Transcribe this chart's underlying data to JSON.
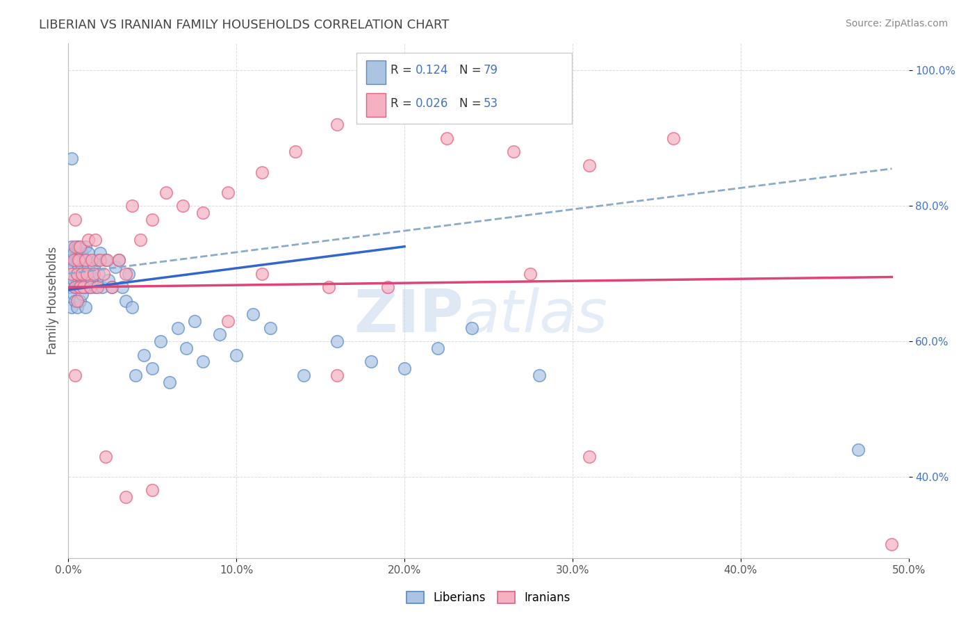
{
  "title": "LIBERIAN VS IRANIAN FAMILY HOUSEHOLDS CORRELATION CHART",
  "source": "Source: ZipAtlas.com",
  "ylabel": "Family Households",
  "xlim": [
    0.0,
    0.5
  ],
  "ylim": [
    0.28,
    1.04
  ],
  "x_ticks": [
    0.0,
    0.1,
    0.2,
    0.3,
    0.4,
    0.5
  ],
  "x_tick_labels": [
    "0.0%",
    "10.0%",
    "20.0%",
    "30.0%",
    "40.0%",
    "50.0%"
  ],
  "y_ticks": [
    0.4,
    0.6,
    0.8,
    1.0
  ],
  "y_tick_labels": [
    "40.0%",
    "60.0%",
    "80.0%",
    "100.0%"
  ],
  "liberian_color": "#aac4e2",
  "iranian_color": "#f5b0c2",
  "liberian_edge_color": "#5588cc",
  "iranian_edge_color": "#e06080",
  "liberian_line_color": "#3366cc",
  "iranian_line_color": "#dd4477",
  "dashed_line_color": "#88aacc",
  "background_color": "#ffffff",
  "grid_color": "#cccccc",
  "title_color": "#444444",
  "yaxis_color": "#4472c4",
  "watermark_color": "#c5d8ee",
  "liberian_x": [
    0.001,
    0.001,
    0.002,
    0.002,
    0.002,
    0.003,
    0.003,
    0.003,
    0.003,
    0.004,
    0.004,
    0.004,
    0.005,
    0.005,
    0.005,
    0.005,
    0.005,
    0.006,
    0.006,
    0.006,
    0.007,
    0.007,
    0.007,
    0.007,
    0.008,
    0.008,
    0.008,
    0.008,
    0.009,
    0.009,
    0.009,
    0.01,
    0.01,
    0.01,
    0.01,
    0.011,
    0.011,
    0.012,
    0.012,
    0.013,
    0.013,
    0.014,
    0.015,
    0.016,
    0.017,
    0.018,
    0.019,
    0.02,
    0.022,
    0.024,
    0.026,
    0.028,
    0.03,
    0.032,
    0.034,
    0.036,
    0.038,
    0.04,
    0.045,
    0.05,
    0.055,
    0.06,
    0.065,
    0.07,
    0.075,
    0.08,
    0.09,
    0.1,
    0.11,
    0.12,
    0.14,
    0.16,
    0.18,
    0.2,
    0.22,
    0.24,
    0.28,
    0.47,
    0.002
  ],
  "liberian_y": [
    0.68,
    0.72,
    0.7,
    0.74,
    0.65,
    0.69,
    0.67,
    0.73,
    0.71,
    0.68,
    0.72,
    0.66,
    0.74,
    0.7,
    0.68,
    0.65,
    0.72,
    0.71,
    0.68,
    0.74,
    0.7,
    0.72,
    0.66,
    0.68,
    0.73,
    0.69,
    0.71,
    0.67,
    0.72,
    0.7,
    0.68,
    0.74,
    0.7,
    0.68,
    0.65,
    0.72,
    0.69,
    0.71,
    0.73,
    0.7,
    0.68,
    0.69,
    0.71,
    0.68,
    0.72,
    0.7,
    0.73,
    0.68,
    0.72,
    0.69,
    0.68,
    0.71,
    0.72,
    0.68,
    0.66,
    0.7,
    0.65,
    0.55,
    0.58,
    0.56,
    0.6,
    0.54,
    0.62,
    0.59,
    0.63,
    0.57,
    0.61,
    0.58,
    0.64,
    0.62,
    0.55,
    0.6,
    0.57,
    0.56,
    0.59,
    0.62,
    0.55,
    0.44,
    0.87
  ],
  "iranian_x": [
    0.002,
    0.003,
    0.004,
    0.004,
    0.005,
    0.005,
    0.006,
    0.007,
    0.007,
    0.008,
    0.009,
    0.01,
    0.011,
    0.012,
    0.013,
    0.014,
    0.015,
    0.016,
    0.017,
    0.019,
    0.021,
    0.023,
    0.026,
    0.03,
    0.034,
    0.038,
    0.043,
    0.05,
    0.058,
    0.068,
    0.08,
    0.095,
    0.115,
    0.135,
    0.16,
    0.19,
    0.225,
    0.265,
    0.31,
    0.36,
    0.19,
    0.155,
    0.275,
    0.16,
    0.115,
    0.49,
    0.022,
    0.034,
    0.31,
    0.095,
    0.05,
    0.004,
    0.004
  ],
  "iranian_y": [
    0.7,
    0.72,
    0.68,
    0.74,
    0.7,
    0.66,
    0.72,
    0.68,
    0.74,
    0.7,
    0.68,
    0.72,
    0.7,
    0.75,
    0.68,
    0.72,
    0.7,
    0.75,
    0.68,
    0.72,
    0.7,
    0.72,
    0.68,
    0.72,
    0.7,
    0.8,
    0.75,
    0.78,
    0.82,
    0.8,
    0.79,
    0.82,
    0.85,
    0.88,
    0.92,
    0.96,
    0.9,
    0.88,
    0.86,
    0.9,
    0.68,
    0.68,
    0.7,
    0.55,
    0.7,
    0.3,
    0.43,
    0.37,
    0.43,
    0.63,
    0.38,
    0.55,
    0.78
  ],
  "lib_trend_x": [
    0.0,
    0.2
  ],
  "lib_trend_y": [
    0.676,
    0.74
  ],
  "iran_trend_x": [
    0.0,
    0.49
  ],
  "iran_trend_y": [
    0.68,
    0.695
  ],
  "dash_trend_x": [
    0.0,
    0.49
  ],
  "dash_trend_y": [
    0.7,
    0.855
  ]
}
